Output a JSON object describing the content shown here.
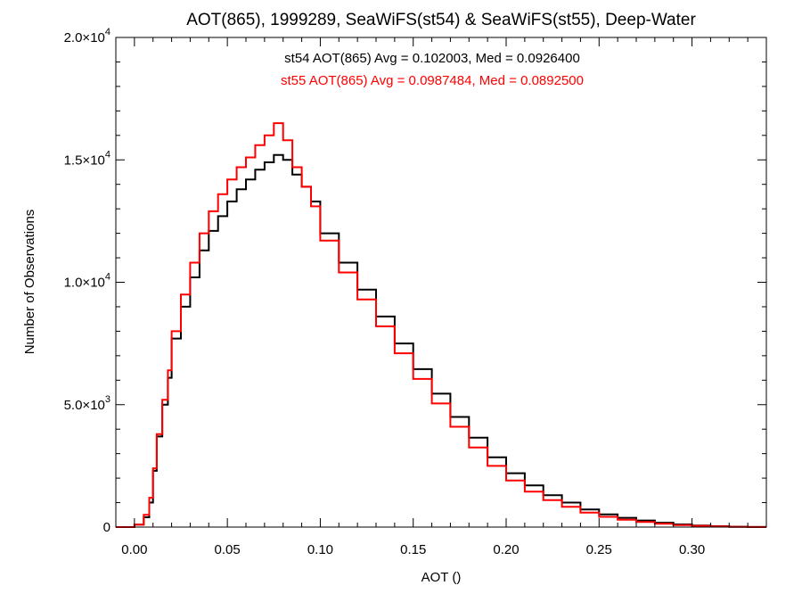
{
  "chart_data": {
    "type": "line",
    "title": "AOT(865), 1999289, SeaWiFS(st54) & SeaWiFS(st55), Deep-Water",
    "xlabel": "AOT ()",
    "ylabel": "Number of Observations",
    "xlim": [
      -0.01,
      0.34
    ],
    "ylim": [
      0,
      20000
    ],
    "x_ticks": [
      {
        "value": 0.0,
        "label": "0.00"
      },
      {
        "value": 0.05,
        "label": "0.05"
      },
      {
        "value": 0.1,
        "label": "0.10"
      },
      {
        "value": 0.15,
        "label": "0.15"
      },
      {
        "value": 0.2,
        "label": "0.20"
      },
      {
        "value": 0.25,
        "label": "0.25"
      },
      {
        "value": 0.3,
        "label": "0.30"
      }
    ],
    "y_ticks": [
      {
        "value": 0,
        "mantissa": "0",
        "exp": ""
      },
      {
        "value": 5000,
        "mantissa": "5.0×10",
        "exp": "3"
      },
      {
        "value": 10000,
        "mantissa": "1.0×10",
        "exp": "4"
      },
      {
        "value": 15000,
        "mantissa": "1.5×10",
        "exp": "4"
      },
      {
        "value": 20000,
        "mantissa": "2.0×10",
        "exp": "4"
      }
    ],
    "grid": false,
    "annotations": [
      {
        "text": "st54 AOT(865) Avg = 0.102003, Med = 0.0926400",
        "color": "#000000"
      },
      {
        "text": "st55 AOT(865) Avg = 0.0987484, Med = 0.0892500",
        "color": "#ff0000"
      }
    ],
    "series": [
      {
        "id": "st54",
        "color": "#000000",
        "x": [
          -0.01,
          0.0,
          0.005,
          0.008,
          0.01,
          0.012,
          0.015,
          0.018,
          0.02,
          0.025,
          0.03,
          0.035,
          0.04,
          0.045,
          0.05,
          0.055,
          0.06,
          0.065,
          0.07,
          0.075,
          0.08,
          0.085,
          0.09,
          0.095,
          0.1,
          0.11,
          0.12,
          0.13,
          0.14,
          0.15,
          0.16,
          0.17,
          0.18,
          0.19,
          0.2,
          0.21,
          0.22,
          0.23,
          0.24,
          0.25,
          0.26,
          0.27,
          0.28,
          0.29,
          0.3,
          0.31,
          0.32,
          0.33,
          0.34
        ],
        "y": [
          0,
          0,
          100,
          400,
          1000,
          2300,
          3700,
          5000,
          6100,
          7700,
          9000,
          10200,
          11300,
          12100,
          12700,
          13300,
          13800,
          14200,
          14600,
          14900,
          15200,
          15000,
          14400,
          13900,
          13300,
          12000,
          10800,
          9700,
          8600,
          7500,
          6450,
          5450,
          4500,
          3650,
          2850,
          2200,
          1700,
          1300,
          1000,
          720,
          520,
          380,
          270,
          180,
          110,
          65,
          35,
          15,
          5
        ]
      },
      {
        "id": "st55",
        "color": "#ff0000",
        "x": [
          -0.01,
          0.0,
          0.005,
          0.008,
          0.01,
          0.012,
          0.015,
          0.018,
          0.02,
          0.025,
          0.03,
          0.035,
          0.04,
          0.045,
          0.05,
          0.055,
          0.06,
          0.065,
          0.07,
          0.075,
          0.08,
          0.085,
          0.09,
          0.095,
          0.1,
          0.11,
          0.12,
          0.13,
          0.14,
          0.15,
          0.16,
          0.17,
          0.18,
          0.19,
          0.2,
          0.21,
          0.22,
          0.23,
          0.24,
          0.25,
          0.26,
          0.27,
          0.28,
          0.29,
          0.3,
          0.31,
          0.32,
          0.33,
          0.34
        ],
        "y": [
          0,
          0,
          100,
          500,
          1200,
          2400,
          3800,
          5200,
          6400,
          8000,
          9500,
          10800,
          12000,
          12900,
          13600,
          14200,
          14700,
          15100,
          15600,
          16000,
          16500,
          15800,
          14700,
          13900,
          13100,
          11700,
          10400,
          9300,
          8200,
          7100,
          6050,
          5050,
          4100,
          3250,
          2500,
          1900,
          1450,
          1100,
          830,
          590,
          420,
          300,
          210,
          140,
          85,
          50,
          25,
          10,
          3
        ]
      }
    ]
  }
}
